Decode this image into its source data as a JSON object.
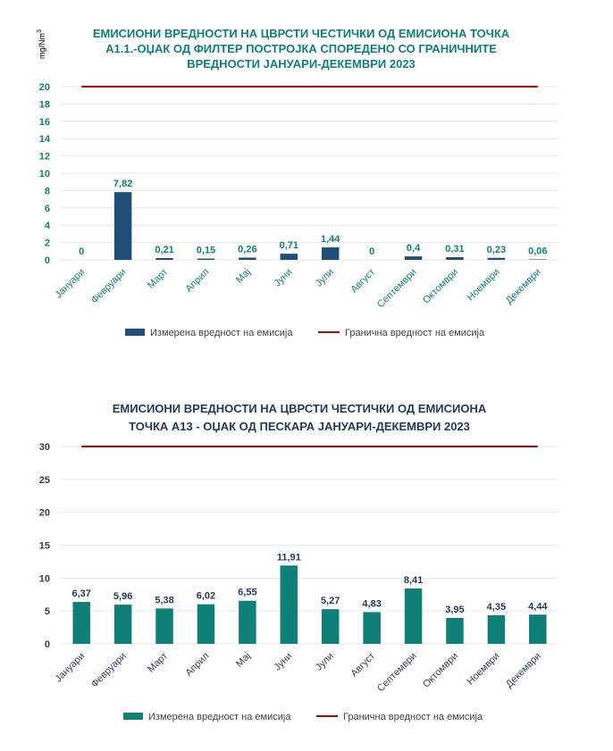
{
  "chart_data": [
    {
      "type": "bar",
      "title_lines": [
        "ЕМИСИОНИ ВРЕДНОСТИ НА ЦВРСТИ ЧЕСТИЧКИ ОД ЕМИСИОНА ТОЧКА",
        "А1.1.-ОЏАК ОД ФИЛТЕР ПОСТРОЈКА СПОРЕДЕНО СО ГРАНИЧНИТЕ",
        "ВРЕДНОСТИ ЈАНУАРИ-ДЕКЕМВРИ 2023"
      ],
      "ylabel": "mg/Nm",
      "ylabel_sup": "3",
      "ylim": [
        0,
        20
      ],
      "yticks": [
        "0",
        "2",
        "4",
        "6",
        "8",
        "10",
        "12",
        "14",
        "16",
        "18",
        "20"
      ],
      "grid": true,
      "legend_position": "bottom",
      "categories": [
        "Јануари",
        "Февруари",
        "Март",
        "Април",
        "Мај",
        "Јуни",
        "Јули",
        "Август",
        "Септември",
        "Октомври",
        "Ноември",
        "Декември"
      ],
      "series": [
        {
          "name": "Измерена вредност на емисија",
          "kind": "bar",
          "color": "#1f4e79",
          "values": [
            0,
            7.82,
            0.21,
            0.15,
            0.26,
            0.71,
            1.44,
            0,
            0.4,
            0.31,
            0.23,
            0.06
          ],
          "labels": [
            "0",
            "7,82",
            "0,21",
            "0,15",
            "0,26",
            "0,71",
            "1,44",
            "0",
            "0,4",
            "0,31",
            "0,23",
            "0,06"
          ]
        },
        {
          "name": "Гранична вредност на емисија",
          "kind": "line",
          "color": "#c00000",
          "value": 20
        }
      ]
    },
    {
      "type": "bar",
      "title_lines": [
        "ЕМИСИОНИ ВРЕДНОСТИ НА ЦВРСТИ ЧЕСТИЧКИ ОД ЕМИСИОНА",
        "ТОЧКА А13 - ОЏАК ОД ПЕСКАРА ЈАНУАРИ-ДЕКЕМВРИ 2023"
      ],
      "ylim": [
        0,
        30
      ],
      "yticks": [
        "0",
        "5",
        "10",
        "15",
        "20",
        "25",
        "30"
      ],
      "grid": true,
      "legend_position": "bottom",
      "categories": [
        "Јануари",
        "Февруари",
        "Март",
        "Април",
        "Мај",
        "Јуни",
        "Јули",
        "Август",
        "Септември",
        "Октомври",
        "Ноември",
        "Декември"
      ],
      "series": [
        {
          "name": "Измерена вредност на емисија",
          "kind": "bar",
          "color": "#0e8078",
          "values": [
            6.37,
            5.96,
            5.38,
            6.02,
            6.55,
            11.91,
            5.27,
            4.83,
            8.41,
            3.95,
            4.35,
            4.44
          ],
          "labels": [
            "6,37",
            "5,96",
            "5,38",
            "6,02",
            "6,55",
            "11,91",
            "5,27",
            "4,83",
            "8,41",
            "3,95",
            "4,35",
            "4,44"
          ]
        },
        {
          "name": "Гранична вредност на емисија",
          "kind": "line",
          "color": "#c00000",
          "value": 30
        }
      ]
    }
  ],
  "colors": {
    "title1": "#0e8078",
    "title2": "#1f3a5a",
    "axis_text1": "#0e8078",
    "axis_text2": "#2f3f54",
    "datalabel1": "#0e8078",
    "datalabel2": "#1f3a5a",
    "grid": "#e6e6e6",
    "legend_text": "#404040"
  }
}
